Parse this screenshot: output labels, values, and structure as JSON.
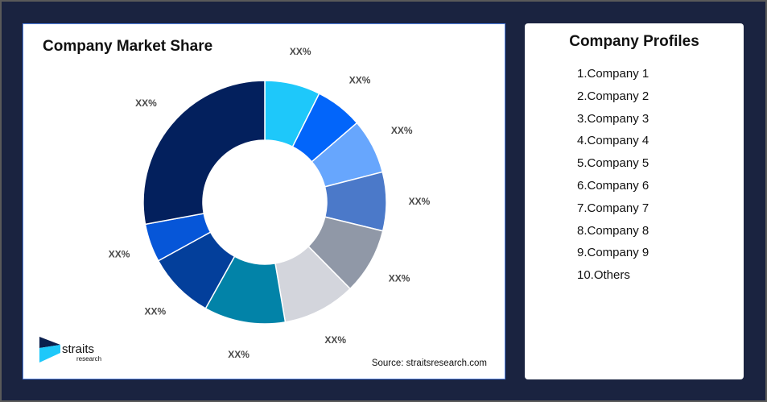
{
  "chart_data": {
    "type": "pie",
    "title": "Company Market Share",
    "donut": true,
    "categories": [
      "Company 1",
      "Company 2",
      "Company 3",
      "Company 4",
      "Company 5",
      "Company 6",
      "Company 7",
      "Company 8",
      "Company 9",
      "Others"
    ],
    "values": [
      7.4,
      6.3,
      7.3,
      7.8,
      8.8,
      9.7,
      10.8,
      8.9,
      5.1,
      27.9
    ],
    "data_labels": [
      "XX%",
      "XX%",
      "XX%",
      "XX%",
      "XX%",
      "XX%",
      "XX%",
      "XX%",
      "XX%",
      "XX%"
    ],
    "colors": [
      "#1ec8fa",
      "#0265fa",
      "#67a6fd",
      "#4b79c9",
      "#9098a7",
      "#d3d5dc",
      "#0283a8",
      "#033f9b",
      "#0656d8",
      "#03205d"
    ],
    "legend": "none"
  },
  "source": "Source: straitsresearch.com",
  "logo": {
    "name": "straits",
    "sub": "research"
  },
  "profiles": {
    "title": "Company Profiles",
    "items": [
      "1.Company 1",
      "2.Company 2",
      "3.Company 3",
      "4.Company 4",
      "5.Company 5",
      "6.Company 6",
      "7.Company 7",
      "8.Company 8",
      "9.Company 9",
      "10.Others"
    ]
  }
}
